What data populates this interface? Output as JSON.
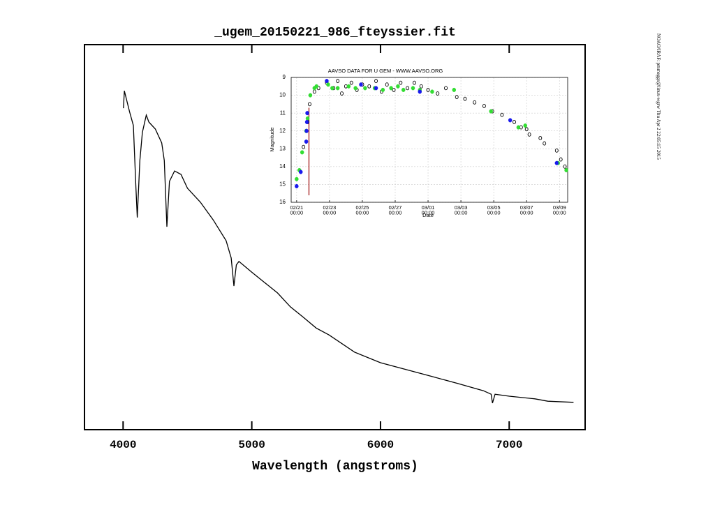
{
  "chart_data": [
    {
      "type": "line",
      "title": "_ugem_20150221_986_fteyssier.fit",
      "x_label": "Wavelength (angstroms)",
      "x": [
        4003,
        4010,
        4050,
        4080,
        4100,
        4110,
        4130,
        4150,
        4180,
        4200,
        4250,
        4300,
        4320,
        4340,
        4360,
        4400,
        4450,
        4500,
        4600,
        4700,
        4800,
        4840,
        4861,
        4880,
        4900,
        5000,
        5100,
        5200,
        5300,
        5400,
        5500,
        5600,
        5800,
        6000,
        6200,
        6400,
        6600,
        6800,
        6860,
        6870,
        6890,
        7000,
        7200,
        7300,
        7500
      ],
      "values": [
        0.835,
        0.88,
        0.826,
        0.79,
        0.627,
        0.551,
        0.699,
        0.772,
        0.817,
        0.799,
        0.781,
        0.745,
        0.699,
        0.527,
        0.645,
        0.672,
        0.663,
        0.627,
        0.591,
        0.545,
        0.491,
        0.446,
        0.373,
        0.428,
        0.437,
        0.409,
        0.382,
        0.355,
        0.319,
        0.292,
        0.264,
        0.246,
        0.201,
        0.174,
        0.156,
        0.138,
        0.12,
        0.101,
        0.092,
        0.069,
        0.092,
        0.087,
        0.08,
        0.074,
        0.071
      ],
      "color": "#000000",
      "xlim": [
        3700,
        7590
      ],
      "xticks": [
        4000,
        5000,
        6000,
        7000
      ],
      "ylim": [
        0,
        1
      ],
      "side_note": "NOAO/IRAF: pmmeggs@linux-wgrw  Thu Apr  2 22:05:15 2015"
    },
    {
      "type": "scatter",
      "title": "AAVSO DATA FOR U GEM - WWW.AAVSO.ORG",
      "x_label": "Date",
      "y_label": "Magnitude",
      "xlim": [
        "02/20 16:00",
        "03/09 12:00"
      ],
      "xticks": [
        "02/21 00:00",
        "02/23 00:00",
        "02/25 00:00",
        "02/27 00:00",
        "03/01 00:00",
        "03/03 00:00",
        "03/05 00:00",
        "03/07 00:00",
        "03/09 00:00"
      ],
      "ylim": [
        16,
        9
      ],
      "yticks": [
        9,
        10,
        11,
        12,
        13,
        14,
        15,
        16
      ],
      "grid": true,
      "vline": {
        "x": "02/21 18:00",
        "color": "#990000"
      },
      "series": [
        {
          "color": "#000000",
          "x": [
            "02/21 10:00",
            "02/21 16:00",
            "02/21 19:00",
            "02/22 02:00",
            "02/22 08:00",
            "02/22 20:00",
            "02/23 06:00",
            "02/23 12:00",
            "02/23 18:00",
            "02/24 00:00",
            "02/24 08:00",
            "02/24 16:00",
            "02/25 00:00",
            "02/25 10:00",
            "02/25 20:00",
            "02/26 04:00",
            "02/26 12:00",
            "02/26 22:00",
            "02/27 08:00",
            "02/27 18:00",
            "02/28 04:00",
            "02/28 14:00",
            "03/01 00:00",
            "03/01 14:00",
            "03/02 02:00",
            "03/02 18:00",
            "03/03 06:00",
            "03/03 20:00",
            "03/04 10:00",
            "03/04 22:00",
            "03/05 12:00",
            "03/06 06:00",
            "03/06 16:00",
            "03/07 00:00",
            "03/07 04:00",
            "03/07 20:00",
            "03/08 02:00",
            "03/08 20:00",
            "03/09 02:00",
            "03/09 08:00"
          ],
          "values": [
            12.9,
            11.5,
            10.5,
            9.8,
            9.6,
            9.3,
            9.6,
            9.2,
            9.9,
            9.5,
            9.3,
            9.7,
            9.4,
            9.5,
            9.2,
            9.8,
            9.4,
            9.7,
            9.3,
            9.6,
            9.3,
            9.5,
            9.7,
            9.9,
            9.6,
            10.1,
            10.2,
            10.4,
            10.6,
            10.9,
            11.1,
            11.5,
            11.8,
            11.9,
            12.2,
            12.4,
            12.7,
            13.1,
            13.6,
            14.0
          ]
        },
        {
          "color": "#33dd33",
          "x": [
            "02/21 00:00",
            "02/21 04:00",
            "02/21 08:00",
            "02/21 14:00",
            "02/21 16:00",
            "02/21 20:00",
            "02/22 02:00",
            "02/22 05:00",
            "02/22 22:00",
            "02/23 04:00",
            "02/23 12:00",
            "02/24 04:00",
            "02/24 14:00",
            "02/25 04:00",
            "02/25 18:00",
            "02/26 06:00",
            "02/26 18:00",
            "02/27 04:00",
            "02/27 12:00",
            "02/28 02:00",
            "02/28 12:00",
            "03/01 06:00",
            "03/02 14:00",
            "03/04 20:00",
            "03/06 12:00",
            "03/06 22:00",
            "03/08 22:00",
            "03/09 10:00"
          ],
          "values": [
            14.7,
            14.2,
            13.2,
            12.0,
            11.3,
            10.0,
            9.6,
            9.5,
            9.4,
            9.6,
            9.6,
            9.5,
            9.6,
            9.6,
            9.6,
            9.7,
            9.6,
            9.5,
            9.7,
            9.6,
            9.7,
            9.8,
            9.7,
            10.9,
            11.8,
            11.7,
            13.8,
            14.2
          ]
        },
        {
          "color": "#1a1aee",
          "x": [
            "02/21 00:00",
            "02/21 06:00",
            "02/21 14:00",
            "02/21 14:30",
            "02/21 15:00",
            "02/21 15:30",
            "02/22 20:00",
            "02/24 22:00",
            "02/25 20:00",
            "02/28 12:00",
            "03/06 00:00",
            "03/08 20:00"
          ],
          "values": [
            15.1,
            14.3,
            12.6,
            12.0,
            11.5,
            11.0,
            9.2,
            9.4,
            9.6,
            9.8,
            11.4,
            13.8
          ]
        }
      ]
    }
  ]
}
